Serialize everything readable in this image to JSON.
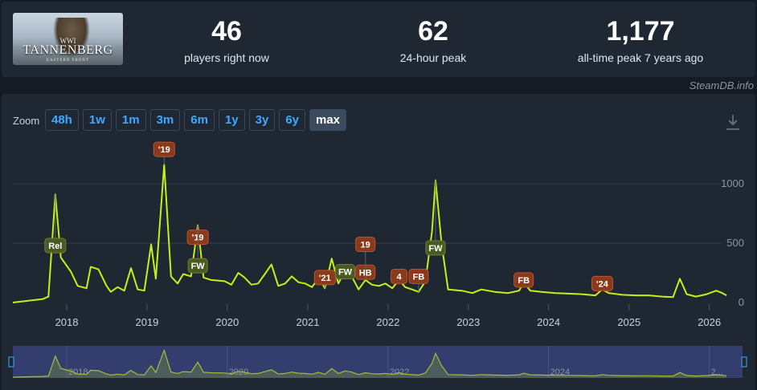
{
  "game": {
    "logo_top": "WWI",
    "logo_title": "TANNENBERG",
    "logo_sub": "EASTERN FRONT"
  },
  "stats": [
    {
      "value": "46",
      "label": "players right now"
    },
    {
      "value": "62",
      "label": "24-hour peak"
    },
    {
      "value": "1,177",
      "label": "all-time peak 7 years ago"
    }
  ],
  "credit": "SteamDB.info",
  "zoom": {
    "label": "Zoom",
    "buttons": [
      "48h",
      "1w",
      "1m",
      "3m",
      "6m",
      "1y",
      "3y",
      "6y",
      "max"
    ],
    "active": "max"
  },
  "colors": {
    "line": "#c6f016",
    "marker_red": "#8a3a1a",
    "marker_green": "#4a5a22",
    "navigator_fill": "#333d6e"
  },
  "icons": {
    "download": "download-icon"
  },
  "chart_data": {
    "type": "line",
    "x_range": [
      "2017-05",
      "2026-06"
    ],
    "ylim": [
      0,
      1250
    ],
    "yticks": [
      0,
      500,
      1000
    ],
    "ytick_labels": [
      "0",
      "500",
      "1000"
    ],
    "x_ticks": [
      {
        "x": "2018-01",
        "label": "2018"
      },
      {
        "x": "2019-01",
        "label": "2019"
      },
      {
        "x": "2020-01",
        "label": "2020"
      },
      {
        "x": "2021-01",
        "label": "2021"
      },
      {
        "x": "2022-01",
        "label": "2022"
      },
      {
        "x": "2023-01",
        "label": "2023"
      },
      {
        "x": "2024-01",
        "label": "2024"
      },
      {
        "x": "2025-01",
        "label": "2025"
      },
      {
        "x": "2026-01",
        "label": "2026"
      }
    ],
    "series": [
      {
        "points": [
          [
            "2017-05-01",
            0
          ],
          [
            "2017-09-15",
            30
          ],
          [
            "2017-10-10",
            50
          ],
          [
            "2017-11-10",
            910
          ],
          [
            "2017-12-05",
            380
          ],
          [
            "2018-01-20",
            260
          ],
          [
            "2018-02-20",
            140
          ],
          [
            "2018-04-01",
            120
          ],
          [
            "2018-04-20",
            300
          ],
          [
            "2018-05-25",
            280
          ],
          [
            "2018-07-01",
            140
          ],
          [
            "2018-07-20",
            90
          ],
          [
            "2018-08-20",
            130
          ],
          [
            "2018-09-20",
            100
          ],
          [
            "2018-10-20",
            290
          ],
          [
            "2018-11-20",
            110
          ],
          [
            "2018-12-20",
            100
          ],
          [
            "2019-01-20",
            490
          ],
          [
            "2019-02-10",
            200
          ],
          [
            "2019-03-20",
            1160
          ],
          [
            "2019-04-20",
            220
          ],
          [
            "2019-05-20",
            160
          ],
          [
            "2019-06-15",
            240
          ],
          [
            "2019-07-20",
            220
          ],
          [
            "2019-08-20",
            650
          ],
          [
            "2019-09-15",
            210
          ],
          [
            "2019-10-20",
            190
          ],
          [
            "2019-12-20",
            180
          ],
          [
            "2020-01-20",
            150
          ],
          [
            "2020-02-20",
            250
          ],
          [
            "2020-03-20",
            210
          ],
          [
            "2020-04-20",
            150
          ],
          [
            "2020-05-20",
            160
          ],
          [
            "2020-06-20",
            240
          ],
          [
            "2020-07-20",
            320
          ],
          [
            "2020-08-20",
            140
          ],
          [
            "2020-09-20",
            160
          ],
          [
            "2020-10-20",
            220
          ],
          [
            "2020-11-20",
            170
          ],
          [
            "2020-12-20",
            160
          ],
          [
            "2021-01-20",
            130
          ],
          [
            "2021-02-20",
            210
          ],
          [
            "2021-03-20",
            120
          ],
          [
            "2021-04-20",
            370
          ],
          [
            "2021-05-20",
            160
          ],
          [
            "2021-06-20",
            270
          ],
          [
            "2021-07-20",
            220
          ],
          [
            "2021-08-20",
            110
          ],
          [
            "2021-09-20",
            190
          ],
          [
            "2021-10-20",
            150
          ],
          [
            "2021-11-20",
            140
          ],
          [
            "2021-12-20",
            160
          ],
          [
            "2022-01-20",
            120
          ],
          [
            "2022-02-20",
            190
          ],
          [
            "2022-03-20",
            130
          ],
          [
            "2022-04-20",
            110
          ],
          [
            "2022-05-20",
            90
          ],
          [
            "2022-06-20",
            180
          ],
          [
            "2022-07-20",
            600
          ],
          [
            "2022-08-05",
            1030
          ],
          [
            "2022-09-01",
            500
          ],
          [
            "2022-10-01",
            110
          ],
          [
            "2022-12-01",
            100
          ],
          [
            "2023-01-20",
            80
          ],
          [
            "2023-03-01",
            110
          ],
          [
            "2023-05-01",
            90
          ],
          [
            "2023-07-01",
            80
          ],
          [
            "2023-08-20",
            100
          ],
          [
            "2023-09-10",
            170
          ],
          [
            "2023-10-10",
            100
          ],
          [
            "2023-12-01",
            90
          ],
          [
            "2024-02-01",
            80
          ],
          [
            "2024-04-01",
            75
          ],
          [
            "2024-06-01",
            70
          ],
          [
            "2024-08-01",
            60
          ],
          [
            "2024-09-01",
            110
          ],
          [
            "2024-10-01",
            80
          ],
          [
            "2024-12-01",
            65
          ],
          [
            "2025-02-01",
            60
          ],
          [
            "2025-04-01",
            60
          ],
          [
            "2025-06-01",
            50
          ],
          [
            "2025-07-20",
            45
          ],
          [
            "2025-08-20",
            200
          ],
          [
            "2025-09-20",
            70
          ],
          [
            "2025-11-01",
            50
          ],
          [
            "2025-12-20",
            70
          ],
          [
            "2026-02-01",
            100
          ],
          [
            "2026-03-01",
            80
          ],
          [
            "2026-03-20",
            60
          ]
        ]
      }
    ],
    "annotations": [
      {
        "text": "Rel",
        "x": "2017-11-10",
        "y": 910,
        "color": "green",
        "label_y": 480
      },
      {
        "text": "'19",
        "x": "2019-03-20",
        "y": 1160,
        "color": "red",
        "label_y": 1290
      },
      {
        "text": "'19",
        "x": "2019-08-20",
        "y": 650,
        "color": "red",
        "label_y": 550
      },
      {
        "text": "FW",
        "x": "2019-08-20",
        "y": 650,
        "color": "green",
        "label_y": 310
      },
      {
        "text": "'21",
        "x": "2021-03-20",
        "y": 120,
        "color": "red",
        "label_y": 210
      },
      {
        "text": "FW",
        "x": "2021-06-20",
        "y": 270,
        "color": "green",
        "label_y": 260
      },
      {
        "text": "HB",
        "x": "2021-09-20",
        "y": 190,
        "color": "red",
        "label_y": 255
      },
      {
        "text": "19",
        "x": "2021-09-20",
        "y": 190,
        "color": "red",
        "label_y": 490
      },
      {
        "text": "4",
        "x": "2022-02-20",
        "y": 190,
        "color": "red",
        "label_y": 220
      },
      {
        "text": "FB",
        "x": "2022-05-20",
        "y": 90,
        "color": "red",
        "label_y": 220
      },
      {
        "text": "FW",
        "x": "2022-08-05",
        "y": 1030,
        "color": "green",
        "label_y": 460
      },
      {
        "text": "FB",
        "x": "2023-09-10",
        "y": 170,
        "color": "red",
        "label_y": 190
      },
      {
        "text": "'24",
        "x": "2024-09-01",
        "y": 110,
        "color": "red",
        "label_y": 160
      }
    ],
    "navigator": {
      "x_ticks": [
        {
          "x": "2018-01",
          "label": "2018"
        },
        {
          "x": "2020-01",
          "label": "2020"
        },
        {
          "x": "2022-01",
          "label": "2022"
        },
        {
          "x": "2024-01",
          "label": "2024"
        },
        {
          "x": "2026-01",
          "label": "2..."
        }
      ]
    }
  }
}
